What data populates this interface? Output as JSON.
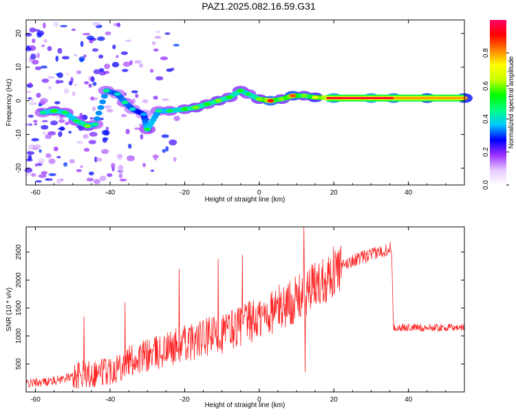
{
  "title": "PAZ1.2025.082.16.59.G31",
  "chart_data": [
    {
      "type": "heatmap",
      "xlabel": "Height of straight line (km)",
      "ylabel": "Frequency (Hz)",
      "xlim": [
        -62.5,
        55
      ],
      "ylim": [
        -25,
        24
      ],
      "xticks": [
        -60,
        -40,
        -20,
        0,
        20,
        40
      ],
      "yticks": [
        -20,
        -10,
        0,
        10,
        20
      ],
      "colorbar": {
        "label": "Normalized spectral amplitude",
        "range": [
          0,
          1
        ],
        "ticks": [
          0.0,
          0.2,
          0.4,
          0.6,
          0.8
        ],
        "colormap": [
          "#ffffff",
          "#e6c8ff",
          "#9b30ff",
          "#0000ff",
          "#00c8ff",
          "#00ff80",
          "#00ff00",
          "#c8ff00",
          "#ffff00",
          "#ff8000",
          "#ff0000",
          "#ff0066"
        ]
      },
      "ridge": [
        {
          "x": -58,
          "y": -3.5,
          "a": 0.45
        },
        {
          "x": -55,
          "y": -3.0,
          "a": 0.55
        },
        {
          "x": -52,
          "y": -3.5,
          "a": 0.5
        },
        {
          "x": -49,
          "y": -6.0,
          "a": 0.5
        },
        {
          "x": -46,
          "y": -7.5,
          "a": 0.6
        },
        {
          "x": -44,
          "y": -7.0,
          "a": 0.45
        },
        {
          "x": -41,
          "y": 3.0,
          "a": 0.45
        },
        {
          "x": -38,
          "y": 2.0,
          "a": 0.4
        },
        {
          "x": -36,
          "y": -0.5,
          "a": 0.45
        },
        {
          "x": -34,
          "y": -2.5,
          "a": 0.4
        },
        {
          "x": -31,
          "y": -4.0,
          "a": 0.35
        },
        {
          "x": -30,
          "y": -8.5,
          "a": 0.5
        },
        {
          "x": -27,
          "y": -3.0,
          "a": 0.45
        },
        {
          "x": -24,
          "y": -3.0,
          "a": 0.5
        },
        {
          "x": -20,
          "y": -2.5,
          "a": 0.55
        },
        {
          "x": -17,
          "y": -2.0,
          "a": 0.6
        },
        {
          "x": -14,
          "y": -1.0,
          "a": 0.55
        },
        {
          "x": -11,
          "y": 0.0,
          "a": 0.6
        },
        {
          "x": -8,
          "y": 1.0,
          "a": 0.55
        },
        {
          "x": -5,
          "y": 3.0,
          "a": 0.55
        },
        {
          "x": -3,
          "y": 2.0,
          "a": 0.5
        },
        {
          "x": 0,
          "y": 0.5,
          "a": 0.6
        },
        {
          "x": 3,
          "y": 0.0,
          "a": 0.9
        },
        {
          "x": 6,
          "y": 0.5,
          "a": 0.6
        },
        {
          "x": 9,
          "y": 1.5,
          "a": 0.85
        },
        {
          "x": 12,
          "y": 1.5,
          "a": 0.6
        },
        {
          "x": 15,
          "y": 1.0,
          "a": 0.7
        },
        {
          "x": 20,
          "y": 0.8,
          "a": 0.95
        },
        {
          "x": 30,
          "y": 0.8,
          "a": 0.95
        },
        {
          "x": 36,
          "y": 0.8,
          "a": 0.9
        },
        {
          "x": 45,
          "y": 0.8,
          "a": 0.8
        },
        {
          "x": 55,
          "y": 0.8,
          "a": 0.8
        }
      ]
    },
    {
      "type": "line",
      "xlabel": "Height of straight line (km)",
      "ylabel": "SNR (10 * v/v)",
      "xlim": [
        -62.5,
        55
      ],
      "ylim": [
        0,
        2950
      ],
      "xticks": [
        -60,
        -40,
        -20,
        0,
        20,
        40
      ],
      "yticks": [
        500,
        1000,
        1500,
        2000,
        2500
      ],
      "color": "#ff2020",
      "trend": [
        {
          "x": -62.5,
          "y": 150
        },
        {
          "x": -55,
          "y": 200
        },
        {
          "x": -50,
          "y": 280
        },
        {
          "x": -45,
          "y": 330
        },
        {
          "x": -40,
          "y": 400
        },
        {
          "x": -35,
          "y": 550
        },
        {
          "x": -30,
          "y": 650
        },
        {
          "x": -25,
          "y": 750
        },
        {
          "x": -20,
          "y": 870
        },
        {
          "x": -15,
          "y": 950
        },
        {
          "x": -10,
          "y": 1050
        },
        {
          "x": -5,
          "y": 1200
        },
        {
          "x": 0,
          "y": 1300
        },
        {
          "x": 5,
          "y": 1500
        },
        {
          "x": 10,
          "y": 1650
        },
        {
          "x": 15,
          "y": 1900
        },
        {
          "x": 20,
          "y": 2150
        },
        {
          "x": 25,
          "y": 2350
        },
        {
          "x": 30,
          "y": 2450
        },
        {
          "x": 35.5,
          "y": 2580
        },
        {
          "x": 36,
          "y": 1150
        },
        {
          "x": 55,
          "y": 1150
        }
      ],
      "spikes": [
        {
          "x": -47,
          "y": 1350
        },
        {
          "x": -36,
          "y": 1600
        },
        {
          "x": -21.5,
          "y": 2200
        },
        {
          "x": -11,
          "y": 2380
        },
        {
          "x": -4.5,
          "y": 2450
        },
        {
          "x": 12,
          "y": 2950
        },
        {
          "x": 12.3,
          "y": 350
        }
      ]
    }
  ]
}
